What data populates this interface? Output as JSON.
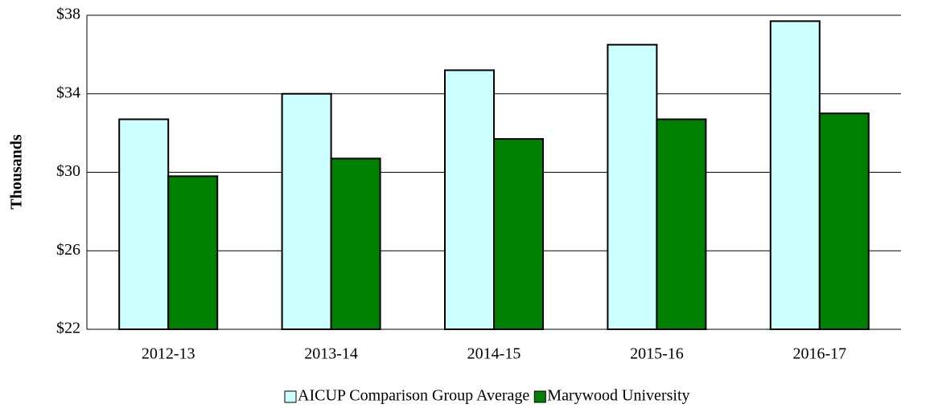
{
  "chart_data": {
    "type": "bar",
    "y_label": "Thousands",
    "categories": [
      "2012-13",
      "2013-14",
      "2014-15",
      "2015-16",
      "2016-17"
    ],
    "series": [
      {
        "name": "AICUP Comparison Group Average",
        "color": "#ccffff",
        "values": [
          32.7,
          34.0,
          35.2,
          36.5,
          37.7
        ]
      },
      {
        "name": "Marywood University",
        "color": "#008000",
        "values": [
          29.8,
          30.7,
          31.7,
          32.7,
          33.0
        ]
      }
    ],
    "ylim": [
      22,
      38
    ],
    "yticks": [
      {
        "value": 22,
        "label": "$22"
      },
      {
        "value": 26,
        "label": "$26"
      },
      {
        "value": 30,
        "label": "$30"
      },
      {
        "value": 34,
        "label": "$34"
      },
      {
        "value": 38,
        "label": "$38"
      }
    ],
    "grid": true,
    "legend": "bottom"
  }
}
